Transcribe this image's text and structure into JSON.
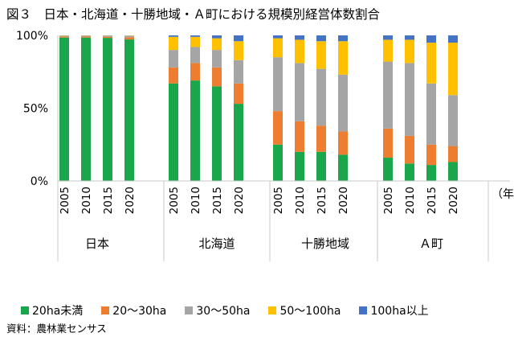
{
  "title": "図３　日本・北海道・十勝地域・Ａ町における規模別経営体数割合",
  "source": "資料：農林業センサス",
  "colors": {
    "s20ha_miman": "#1aa64a",
    "s20_30ha": "#ed7d31",
    "s30_50ha": "#a5a5a5",
    "s50_100ha": "#ffc000",
    "s100ha_ijo": "#4472c4"
  },
  "chart_data": {
    "type": "bar",
    "stacked": true,
    "x_unit_label": "（年）",
    "y_ticks": [
      "100%",
      "50%",
      "0%"
    ],
    "ylim": [
      0,
      100
    ],
    "grid": false,
    "legend_position": "bottom",
    "groups": [
      {
        "name": "日本",
        "years": [
          "2005",
          "2010",
          "2015",
          "2020"
        ]
      },
      {
        "name": "北海道",
        "years": [
          "2005",
          "2010",
          "2015",
          "2020"
        ]
      },
      {
        "name": "十勝地域",
        "years": [
          "2005",
          "2010",
          "2015",
          "2020"
        ]
      },
      {
        "name": "Ａ町",
        "years": [
          "2005",
          "2010",
          "2015",
          "2020"
        ]
      }
    ],
    "series": [
      {
        "name": "20ha未満",
        "color": "#1aa64a",
        "values": [
          98.5,
          98.5,
          98.3,
          97.2,
          67,
          69,
          65,
          53,
          25,
          20,
          20,
          18,
          16,
          12,
          11,
          13
        ]
      },
      {
        "name": "20～30ha",
        "color": "#ed7d31",
        "values": [
          0.8,
          0.7,
          0.8,
          1.5,
          11,
          12,
          13,
          14,
          23,
          21,
          18,
          16,
          20,
          19,
          14,
          11
        ]
      },
      {
        "name": "30～50ha",
        "color": "#a5a5a5",
        "values": [
          0.5,
          0.5,
          0.6,
          0.9,
          12,
          11,
          12,
          16,
          37,
          40,
          39,
          39,
          46,
          50,
          42,
          35
        ]
      },
      {
        "name": "50～100ha",
        "color": "#ffc000",
        "values": [
          0.15,
          0.2,
          0.2,
          0.3,
          9,
          7,
          8,
          13,
          13,
          16,
          19,
          23,
          15,
          16,
          28,
          36
        ]
      },
      {
        "name": "100ha以上",
        "color": "#4472c4",
        "values": [
          0.05,
          0.1,
          0.1,
          0.1,
          1,
          1,
          2,
          4,
          2,
          3,
          4,
          4,
          3,
          3,
          5,
          5
        ]
      }
    ]
  }
}
